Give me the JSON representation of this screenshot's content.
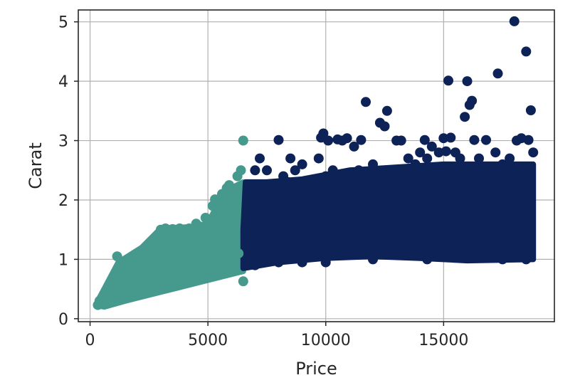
{
  "chart_data": {
    "type": "scatter",
    "xlabel": "Price",
    "ylabel": "Carat",
    "xlim": [
      -500,
      19700
    ],
    "ylim": [
      -0.05,
      5.2
    ],
    "x_ticks": [
      0,
      5000,
      10000,
      15000
    ],
    "x_tick_labels": [
      "0",
      "5000",
      "10000",
      "15000"
    ],
    "y_ticks": [
      0,
      1,
      2,
      3,
      4,
      5
    ],
    "y_tick_labels": [
      "0",
      "1",
      "2",
      "3",
      "4",
      "5"
    ],
    "grid": true,
    "colors": {
      "low_price_cluster": "#46998d",
      "high_price_cluster": "#0d2257"
    },
    "series": [
      {
        "color": "#46998d",
        "points": [
          [
            330,
            0.23
          ],
          [
            360,
            0.24
          ],
          [
            400,
            0.3
          ],
          [
            420,
            0.26
          ],
          [
            450,
            0.29
          ],
          [
            500,
            0.31
          ],
          [
            560,
            0.33
          ],
          [
            600,
            0.35
          ],
          [
            650,
            0.32
          ],
          [
            700,
            0.4
          ],
          [
            750,
            0.38
          ],
          [
            800,
            0.42
          ],
          [
            900,
            0.45
          ],
          [
            1000,
            0.5
          ],
          [
            1100,
            0.55
          ],
          [
            1150,
            1.05
          ],
          [
            1200,
            0.6
          ],
          [
            1300,
            0.7
          ],
          [
            1400,
            0.72
          ],
          [
            1500,
            0.9
          ],
          [
            1600,
            0.95
          ],
          [
            1700,
            0.8
          ],
          [
            1800,
            1.01
          ],
          [
            2000,
            1.0
          ],
          [
            2100,
            0.9
          ],
          [
            2200,
            1.1
          ],
          [
            2300,
            0.75
          ],
          [
            2500,
            1.1
          ],
          [
            2700,
            1.2
          ],
          [
            2800,
            1.25
          ],
          [
            2900,
            1.3
          ],
          [
            3000,
            1.5
          ],
          [
            3200,
            1.52
          ],
          [
            3300,
            1.5
          ],
          [
            3500,
            1.51
          ],
          [
            3600,
            1.4
          ],
          [
            3800,
            1.52
          ],
          [
            4000,
            1.5
          ],
          [
            4200,
            1.52
          ],
          [
            4300,
            1.35
          ],
          [
            4500,
            1.6
          ],
          [
            4700,
            1.55
          ],
          [
            4900,
            1.7
          ],
          [
            5000,
            1.5
          ],
          [
            5200,
            1.9
          ],
          [
            5300,
            2.01
          ],
          [
            5400,
            1.8
          ],
          [
            5500,
            2.0
          ],
          [
            5600,
            2.1
          ],
          [
            5700,
            2.05
          ],
          [
            5800,
            2.2
          ],
          [
            5900,
            2.25
          ],
          [
            6000,
            2.0
          ],
          [
            6200,
            2.1
          ],
          [
            6250,
            2.4
          ],
          [
            6400,
            2.5
          ],
          [
            6500,
            3.0
          ],
          [
            6500,
            0.63
          ],
          [
            5000,
            1.2
          ],
          [
            5500,
            1.0
          ],
          [
            6000,
            1.0
          ],
          [
            4000,
            1.0
          ],
          [
            3000,
            0.8
          ],
          [
            2500,
            0.7
          ],
          [
            6300,
            1.1
          ],
          [
            5800,
            0.9
          ]
        ]
      },
      {
        "color": "#0d2257",
        "points": [
          [
            6700,
            0.9
          ],
          [
            6800,
            2.2
          ],
          [
            7000,
            2.5
          ],
          [
            7200,
            2.7
          ],
          [
            7500,
            2.5
          ],
          [
            7700,
            2.0
          ],
          [
            8000,
            3.01
          ],
          [
            8200,
            2.4
          ],
          [
            8400,
            2.3
          ],
          [
            8500,
            2.7
          ],
          [
            8700,
            2.5
          ],
          [
            9000,
            2.6
          ],
          [
            9300,
            2.2
          ],
          [
            9500,
            2.3
          ],
          [
            9700,
            2.7
          ],
          [
            9800,
            3.05
          ],
          [
            9900,
            3.12
          ],
          [
            10000,
            2.4
          ],
          [
            10100,
            3.0
          ],
          [
            10300,
            2.5
          ],
          [
            10500,
            3.02
          ],
          [
            10700,
            3.0
          ],
          [
            10900,
            3.04
          ],
          [
            11000,
            2.1
          ],
          [
            11200,
            2.9
          ],
          [
            11400,
            2.5
          ],
          [
            11500,
            3.01
          ],
          [
            11700,
            3.65
          ],
          [
            12000,
            2.6
          ],
          [
            12300,
            3.3
          ],
          [
            12500,
            3.24
          ],
          [
            12600,
            3.5
          ],
          [
            12800,
            2.5
          ],
          [
            13000,
            3.0
          ],
          [
            13200,
            3.0
          ],
          [
            13500,
            2.7
          ],
          [
            13800,
            2.6
          ],
          [
            14000,
            2.8
          ],
          [
            14200,
            3.01
          ],
          [
            14300,
            2.7
          ],
          [
            14500,
            2.9
          ],
          [
            14800,
            2.8
          ],
          [
            15000,
            3.04
          ],
          [
            15100,
            2.82
          ],
          [
            15200,
            4.01
          ],
          [
            15300,
            3.05
          ],
          [
            15500,
            2.8
          ],
          [
            15700,
            2.7
          ],
          [
            15800,
            2.5
          ],
          [
            15900,
            3.4
          ],
          [
            16000,
            4.0
          ],
          [
            16100,
            3.6
          ],
          [
            16200,
            3.67
          ],
          [
            16300,
            3.01
          ],
          [
            16500,
            2.7
          ],
          [
            16800,
            3.01
          ],
          [
            17000,
            2.5
          ],
          [
            17200,
            2.8
          ],
          [
            17300,
            4.13
          ],
          [
            17500,
            2.6
          ],
          [
            17800,
            2.7
          ],
          [
            18000,
            5.01
          ],
          [
            18100,
            3.0
          ],
          [
            18300,
            3.04
          ],
          [
            18500,
            4.5
          ],
          [
            18600,
            3.01
          ],
          [
            18700,
            3.51
          ],
          [
            18800,
            2.8
          ],
          [
            14300,
            1.0
          ],
          [
            15500,
            1.2
          ],
          [
            16500,
            1.3
          ],
          [
            17500,
            1.0
          ],
          [
            18500,
            1.0
          ],
          [
            12000,
            1.0
          ],
          [
            10000,
            0.95
          ],
          [
            9000,
            0.95
          ],
          [
            8000,
            0.95
          ],
          [
            7000,
            0.9
          ],
          [
            18600,
            1.6
          ],
          [
            17800,
            1.4
          ],
          [
            16800,
            1.2
          ]
        ]
      }
    ]
  }
}
